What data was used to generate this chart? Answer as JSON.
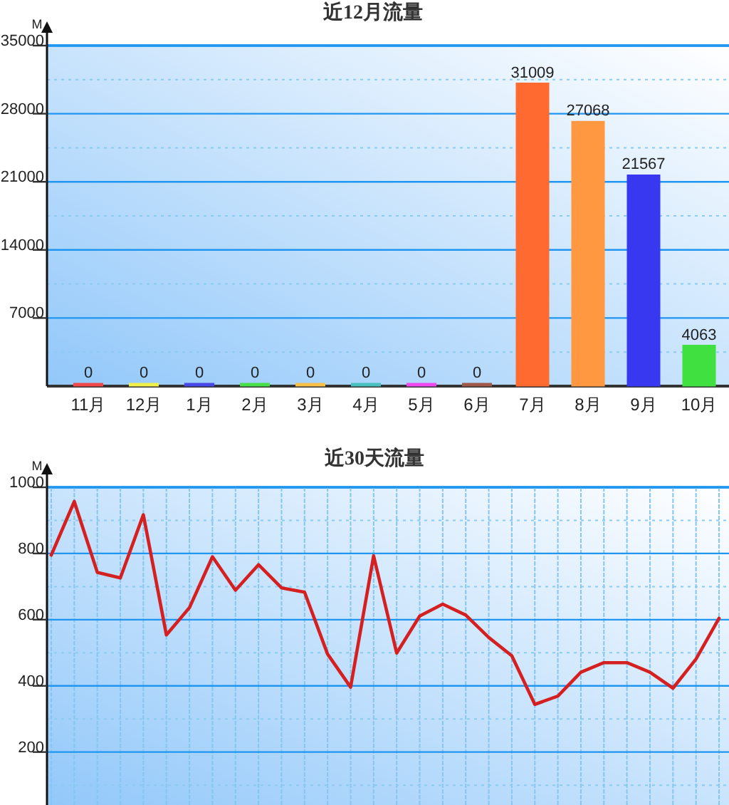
{
  "chart_data": [
    {
      "type": "bar",
      "title": "近12月流量",
      "ylabel": "M",
      "categories": [
        "11月",
        "12月",
        "1月",
        "2月",
        "3月",
        "4月",
        "5月",
        "6月",
        "7月",
        "8月",
        "9月",
        "10月"
      ],
      "values": [
        0,
        0,
        0,
        0,
        0,
        0,
        0,
        0,
        31009,
        27068,
        21567,
        4063
      ],
      "colors": [
        "#f04848",
        "#f0f048",
        "#4848e8",
        "#48e048",
        "#f8c048",
        "#48c0c0",
        "#f048f0",
        "#a05848",
        "#ff6a30",
        "#ff9840",
        "#3838f0",
        "#40e040"
      ],
      "ylim": [
        0,
        35000
      ],
      "yticks": [
        {
          "value": 3500,
          "label": null
        },
        7000,
        {
          "value": 10500,
          "label": null
        },
        14000,
        {
          "value": 17500,
          "label": null
        },
        21000,
        {
          "value": 24500,
          "label": null
        },
        28000,
        {
          "value": 31500,
          "label": null
        },
        35000
      ],
      "grid": "y",
      "data_labels": true
    },
    {
      "type": "line",
      "title": "近30天流量",
      "ylabel": "M",
      "categories": [
        null,
        null,
        null,
        null,
        null,
        null,
        null,
        null,
        null,
        null,
        null,
        null,
        null,
        null,
        null,
        null,
        null,
        null,
        null,
        null,
        null,
        null,
        null,
        null,
        null,
        null,
        null,
        null,
        null,
        null
      ],
      "series": [
        {
          "color": "#d42020",
          "values": [
            795,
            957,
            743,
            726,
            917,
            554,
            636,
            790,
            689,
            766,
            696,
            683,
            496,
            396,
            793,
            499,
            611,
            647,
            614,
            546,
            491,
            344,
            369,
            441,
            470,
            470,
            441,
            393,
            481,
            604
          ]
        }
      ],
      "ylim": [
        40,
        1000
      ],
      "yticks": [
        {
          "value": 100,
          "label": null
        },
        200,
        {
          "value": 300,
          "label": null
        },
        400,
        {
          "value": 500,
          "label": null
        },
        600,
        {
          "value": 700,
          "label": null
        },
        800,
        {
          "value": 900,
          "label": null
        },
        1000
      ],
      "grid": true,
      "tick_labels": "y",
      "marker": "none",
      "line_style": "solid"
    }
  ]
}
